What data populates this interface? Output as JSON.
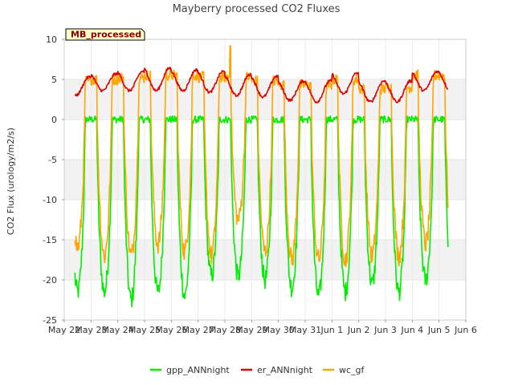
{
  "chart_data": {
    "type": "line",
    "title": "Mayberry processed CO2 Fluxes",
    "ylabel": "CO2 Flux (urology/m2/s)",
    "xlabel": "",
    "badge": "MB_processed",
    "ylim": [
      -25,
      10
    ],
    "yticks": [
      -25,
      -20,
      -15,
      -10,
      -5,
      0,
      5,
      10
    ],
    "xlim": [
      0,
      15
    ],
    "xticks": [
      0,
      1,
      2,
      3,
      4,
      5,
      6,
      7,
      8,
      9,
      10,
      11,
      12,
      13,
      14,
      15
    ],
    "xtick_labels": [
      "May 22",
      "May 23",
      "May 24",
      "May 25",
      "May 26",
      "May 27",
      "May 28",
      "May 29",
      "May 30",
      "May 31",
      "Jun 1",
      "Jun 2",
      "Jun 3",
      "Jun 4",
      "Jun 5",
      "Jun 6"
    ],
    "x_units": "days since May 22",
    "grid_bands": true,
    "legend_position": "bottom",
    "day_start": 0.4,
    "day_end": 14.35,
    "series": [
      {
        "name": "gpp_ANNnight",
        "color": "#00ee00",
        "night_value": 0,
        "day_peaks": [
          -21.5,
          -21.5,
          -22.5,
          -21.5,
          -22.0,
          -19.5,
          -19.5,
          -20.0,
          -21.0,
          -22.0,
          -21.5,
          -20.5,
          -21.5,
          -20.0
        ]
      },
      {
        "name": "er_ANNnight",
        "color": "#dd0000",
        "night_peaks": [
          5.3,
          5.7,
          6.0,
          6.4,
          6.2,
          6.0,
          5.6,
          5.4,
          4.8,
          4.8,
          5.8,
          4.8,
          4.8,
          6.0
        ],
        "day_values": [
          3.0,
          3.6,
          3.6,
          3.6,
          3.6,
          3.4,
          3.0,
          2.8,
          2.4,
          2.2,
          3.2,
          2.2,
          2.2,
          3.6
        ]
      },
      {
        "name": "wc_gf",
        "color": "#ffa500",
        "night_values": [
          4.8,
          5.0,
          5.2,
          5.5,
          5.5,
          5.3,
          5.3,
          4.8,
          4.3,
          4.3,
          5.0,
          3.8,
          4.0,
          5.5
        ],
        "day_peaks": [
          -16.0,
          -17.0,
          -17.0,
          -15.5,
          -16.5,
          -17.0,
          -12.5,
          -16.5,
          -17.5,
          -17.5,
          -17.5,
          -17.0,
          -17.0,
          -15.5
        ],
        "spikes": [
          {
            "x": 6.2,
            "y": 9.2
          }
        ]
      }
    ]
  }
}
